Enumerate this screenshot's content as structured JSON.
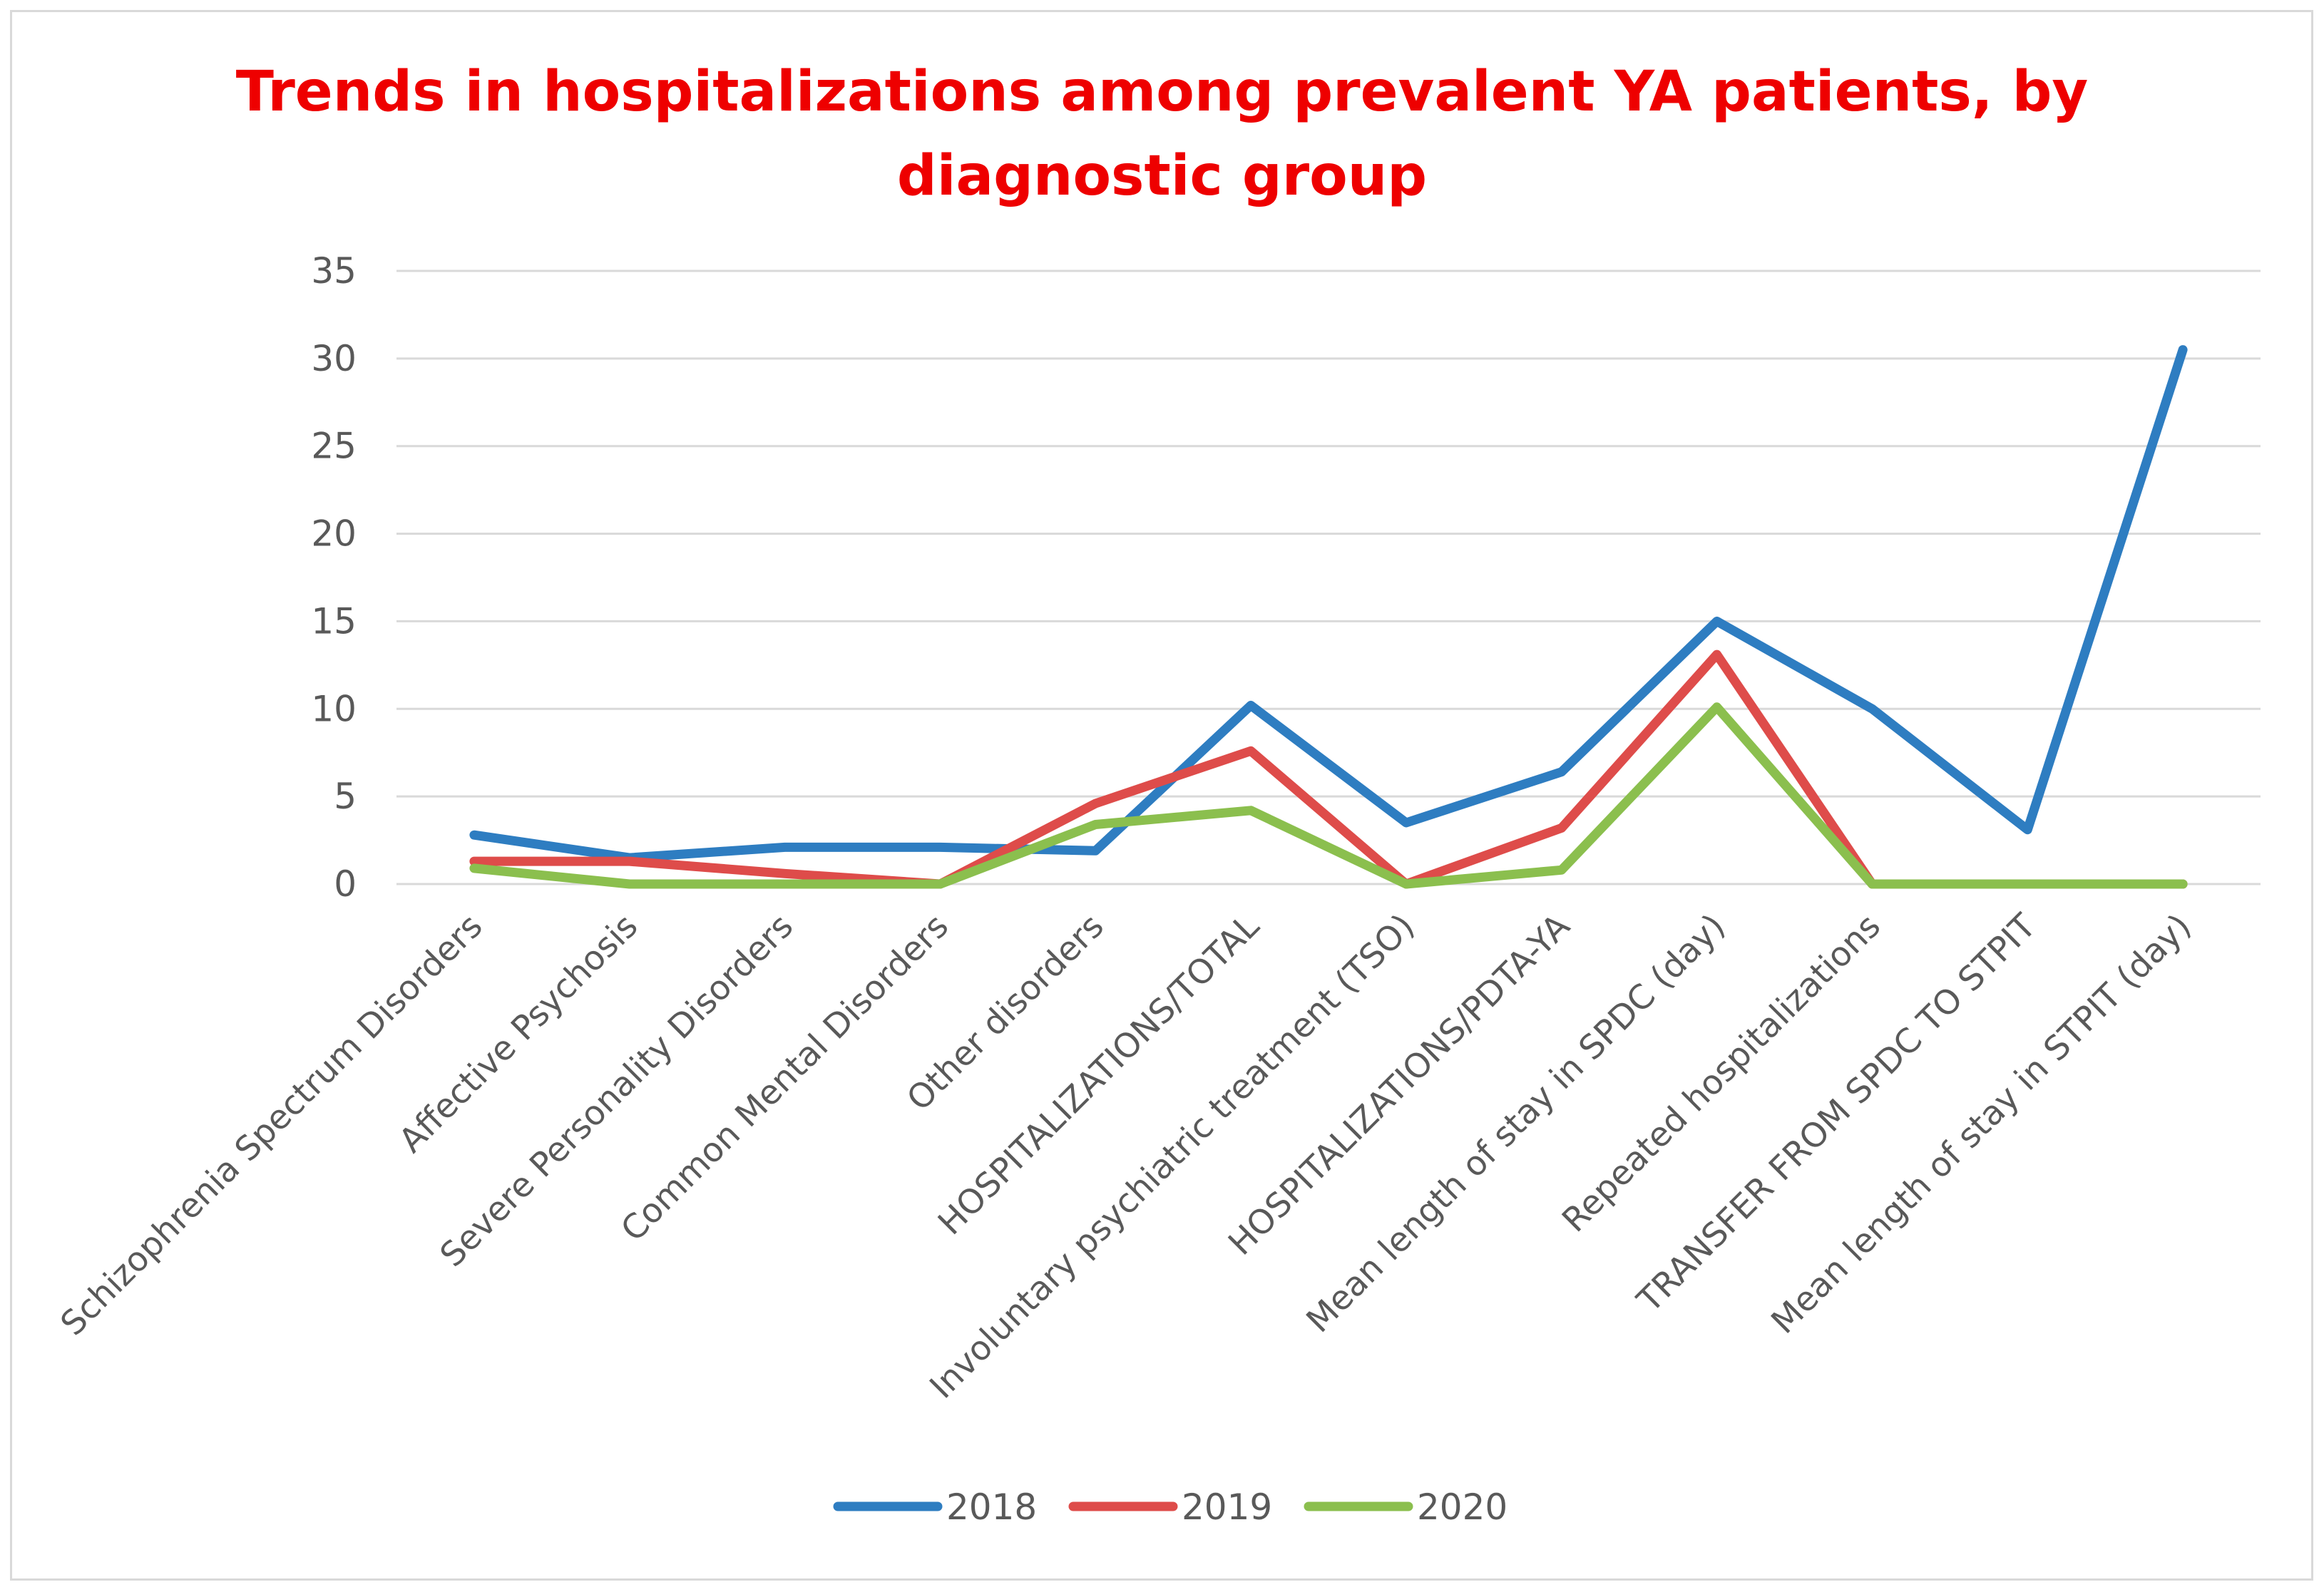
{
  "chart_data": {
    "type": "line",
    "title_lines": [
      "Trends in hospitalizations among prevalent YA patients, by",
      "diagnostic group"
    ],
    "categories": [
      "Schizophrenia Spectrum Disorders",
      "Affective Psychosis",
      "Severe Personality Disorders",
      "Common Mental Disorders",
      "Other disorders",
      "HOSPITALIZATIONS/TOTAL",
      "Involuntary psychiatric treatment (TSO)",
      "HOSPITALIZATIONS/PDTA-YA",
      "Mean length of stay in SPDC (day)",
      "Repeated hospitalizations",
      "TRANSFER FROM SPDC TO STPIT",
      "Mean length of stay in STPIT (day)"
    ],
    "series": [
      {
        "name": "2018",
        "color": "#2e7dc1",
        "values": [
          2.8,
          1.5,
          2.1,
          2.1,
          1.9,
          10.2,
          3.5,
          6.4,
          15.0,
          10.0,
          3.1,
          30.5
        ]
      },
      {
        "name": "2019",
        "color": "#de4c4a",
        "values": [
          1.3,
          1.3,
          0.6,
          0,
          4.6,
          7.6,
          0,
          3.2,
          13.1,
          0,
          0,
          0
        ]
      },
      {
        "name": "2020",
        "color": "#8bbf4e",
        "values": [
          0.9,
          0,
          0,
          0,
          3.4,
          4.2,
          0,
          0.8,
          10.1,
          0,
          0,
          0
        ]
      }
    ],
    "yticks": [
      0,
      5,
      10,
      15,
      20,
      25,
      30,
      35
    ],
    "ylim": [
      0,
      35
    ],
    "xlabel": "",
    "ylabel": "",
    "grid": true,
    "legend": "bottom-center",
    "gridline_color": "#d9d9d9"
  }
}
